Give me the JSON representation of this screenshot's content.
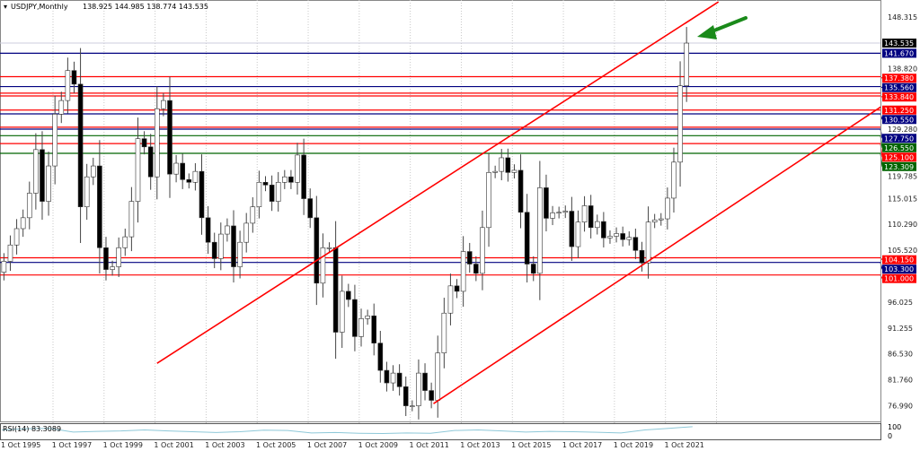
{
  "header": {
    "symbol": "USDJPY,Monthly",
    "ohlc": "138.925 144.985 138.774 143.535"
  },
  "chart_data": {
    "type": "candlestick",
    "title": "USDJPY,Monthly",
    "period_note": "quarterly closes approximated from monthly candles, first period Oct 1995",
    "start": "1995-10",
    "open_first": 101.5,
    "closes": [
      103.5,
      106.5,
      109.5,
      111.5,
      116,
      124,
      114.5,
      121,
      130.5,
      133,
      138.5,
      136,
      113.5,
      119,
      121,
      106,
      102,
      102.5,
      106,
      108,
      114.5,
      126,
      124.5,
      119,
      131.5,
      133,
      119.5,
      121.5,
      118.5,
      118,
      120,
      111.5,
      107,
      104,
      108.5,
      110,
      102.5,
      107,
      110.5,
      113.5,
      118,
      117.5,
      114.5,
      118,
      119,
      118,
      123,
      115,
      111.5,
      99.5,
      106,
      106,
      90.5,
      98,
      96.5,
      89.7,
      93,
      93.5,
      88.5,
      83.5,
      81.2,
      83,
      80.5,
      77,
      77,
      83,
      79.8,
      78,
      86.7,
      94,
      99,
      98,
      105.3,
      103,
      101.3,
      109.7,
      119.8,
      120,
      122.5,
      119.8,
      120.2,
      112.5,
      103,
      101.3,
      117,
      111.4,
      112.4,
      112.5,
      112.7,
      106.2,
      110.7,
      113.7,
      109.7,
      110.8,
      107.8,
      108.1,
      108.6,
      107.5,
      107.9,
      105.5,
      103.2,
      110.7,
      111.1,
      111.3,
      115.1,
      121.7,
      135.7,
      143.535
    ],
    "ylim": [
      74.5,
      151.5
    ],
    "y_ticks": [
      "148.315",
      "138.820",
      "129.280",
      "119.785",
      "115.015",
      "110.290",
      "105.520",
      "96.025",
      "91.255",
      "86.530",
      "81.760",
      "76.990"
    ],
    "y_tick_values": [
      148.315,
      138.82,
      129.28,
      119.785,
      115.015,
      110.29,
      105.52,
      96.025,
      91.255,
      86.53,
      81.76,
      76.99
    ],
    "x_ticks": [
      "1 Oct 1995",
      "1 Oct 1997",
      "1 Oct 1999",
      "1 Oct 2001",
      "1 Oct 2003",
      "1 Oct 2005",
      "1 Oct 2007",
      "1 Oct 2009",
      "1 Oct 2011",
      "1 Oct 2013",
      "1 Oct 2015",
      "1 Oct 2017",
      "1 Oct 2019",
      "1 Oct 2021"
    ],
    "current_price": {
      "label": "143.535",
      "value": 143.535,
      "color": "#000000"
    },
    "levels": [
      {
        "label": "141.670",
        "value": 141.67,
        "color": "#000080"
      },
      {
        "label": "137.380",
        "value": 137.38,
        "color": "#ff0000"
      },
      {
        "label": "135.560",
        "value": 135.56,
        "color": "#000080"
      },
      {
        "label": "",
        "value": 134.35,
        "color": "#ff0000"
      },
      {
        "label": "133.840",
        "value": 133.84,
        "color": "#ff0000"
      },
      {
        "label": "131.250",
        "value": 131.25,
        "color": "#ff0000"
      },
      {
        "label": "130.550",
        "value": 130.55,
        "color": "#000080"
      },
      {
        "label": "",
        "value": 128.1,
        "color": "#ff0000"
      },
      {
        "label": "127.750",
        "value": 127.75,
        "color": "#000080"
      },
      {
        "label": "126.550",
        "value": 126.55,
        "color": "#006400"
      },
      {
        "label": "125.100",
        "value": 125.1,
        "color": "#ff0000"
      },
      {
        "label": "123.309",
        "value": 123.309,
        "color": "#006400"
      },
      {
        "label": "104.150",
        "value": 104.15,
        "color": "#ff0000"
      },
      {
        "label": "103.300",
        "value": 103.3,
        "color": "#000080"
      },
      {
        "label": "101.000",
        "value": 101.0,
        "color": "#ff0000"
      }
    ],
    "trendlines": [
      {
        "from": [
          "2001-11",
          84.8
        ],
        "to": [
          "2023-11",
          151.1
        ],
        "color": "#ff0000"
      },
      {
        "from": [
          "2012-09",
          77.4
        ],
        "to": [
          "2030-04",
          132.0
        ],
        "color": "#ff0000"
      }
    ],
    "annotation_arrow_color": "#1a8a1a",
    "indicator": {
      "label": "RSI(14) 83.3089",
      "value": 83.3089,
      "ylim": [
        0,
        100
      ],
      "y_ticks": [
        "100",
        "0"
      ],
      "yearly_values": [
        62,
        70,
        72,
        48,
        52,
        55,
        62,
        55,
        50,
        45,
        50,
        60,
        58,
        42,
        45,
        40,
        38,
        42,
        40,
        58,
        62,
        55,
        48,
        52,
        50,
        46,
        42,
        62,
        72,
        83.3089
      ],
      "color": "#8ec8d8"
    }
  }
}
